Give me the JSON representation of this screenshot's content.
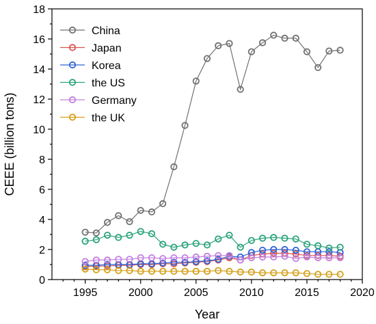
{
  "chart_data": {
    "type": "line",
    "xlabel": "Year",
    "ylabel": "CEEE (billion tons)",
    "xlim": [
      1992,
      2020
    ],
    "ylim": [
      0,
      18
    ],
    "xticks": [
      1995,
      2000,
      2005,
      2010,
      2015,
      2020
    ],
    "yticks": [
      0,
      2,
      4,
      6,
      8,
      10,
      12,
      14,
      16,
      18
    ],
    "grid": false,
    "legend_position": "top-left",
    "x": [
      1995,
      1996,
      1997,
      1998,
      1999,
      2000,
      2001,
      2002,
      2003,
      2004,
      2005,
      2006,
      2007,
      2008,
      2009,
      2010,
      2011,
      2012,
      2013,
      2014,
      2015,
      2016,
      2017,
      2018
    ],
    "series": [
      {
        "name": "China",
        "color": "#707070",
        "values": [
          3.15,
          3.1,
          3.8,
          4.25,
          3.85,
          4.6,
          4.5,
          5.05,
          7.5,
          10.25,
          13.2,
          14.7,
          15.55,
          15.7,
          12.65,
          15.15,
          15.75,
          16.25,
          16.05,
          16.05,
          15.15,
          14.1,
          15.2,
          15.25
        ]
      },
      {
        "name": "Japan",
        "color": "#d9534f",
        "values": [
          0.85,
          0.9,
          0.9,
          0.95,
          0.95,
          1.0,
          1.0,
          1.05,
          1.05,
          1.1,
          1.15,
          1.2,
          1.3,
          1.45,
          1.3,
          1.6,
          1.7,
          1.75,
          1.75,
          1.7,
          1.6,
          1.6,
          1.6,
          1.55
        ]
      },
      {
        "name": "Korea",
        "color": "#2e63d6",
        "values": [
          0.95,
          0.95,
          1.0,
          1.0,
          1.0,
          1.05,
          1.05,
          1.1,
          1.15,
          1.15,
          1.2,
          1.25,
          1.35,
          1.55,
          1.5,
          1.8,
          1.95,
          2.0,
          2.0,
          1.95,
          1.85,
          1.85,
          1.85,
          1.8
        ]
      },
      {
        "name": "the US",
        "color": "#2aa37a",
        "values": [
          2.55,
          2.65,
          2.95,
          2.8,
          2.95,
          3.2,
          3.05,
          2.35,
          2.15,
          2.3,
          2.4,
          2.3,
          2.7,
          2.95,
          2.15,
          2.6,
          2.75,
          2.8,
          2.75,
          2.7,
          2.35,
          2.25,
          2.1,
          2.15
        ]
      },
      {
        "name": "Germany",
        "color": "#c27fe0",
        "values": [
          1.2,
          1.3,
          1.3,
          1.35,
          1.35,
          1.45,
          1.45,
          1.4,
          1.45,
          1.45,
          1.5,
          1.55,
          1.6,
          1.6,
          1.3,
          1.45,
          1.5,
          1.5,
          1.55,
          1.4,
          1.5,
          1.45,
          1.45,
          1.45
        ]
      },
      {
        "name": "the UK",
        "color": "#d4a017",
        "values": [
          0.7,
          0.65,
          0.65,
          0.6,
          0.6,
          0.55,
          0.55,
          0.55,
          0.55,
          0.55,
          0.55,
          0.55,
          0.6,
          0.55,
          0.5,
          0.5,
          0.45,
          0.45,
          0.45,
          0.45,
          0.4,
          0.35,
          0.35,
          0.35
        ]
      }
    ]
  }
}
